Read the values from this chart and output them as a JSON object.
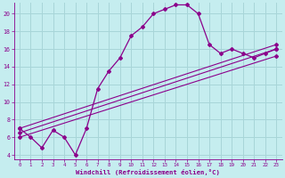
{
  "xlabel": "Windchill (Refroidissement éolien,°C)",
  "bg_color": "#c5edef",
  "grid_color": "#a8d5d8",
  "line_color": "#8b008b",
  "xlim": [
    -0.5,
    23.5
  ],
  "ylim": [
    3.5,
    21.2
  ],
  "yticks": [
    4,
    6,
    8,
    10,
    12,
    14,
    16,
    18,
    20
  ],
  "xticks": [
    0,
    1,
    2,
    3,
    4,
    5,
    6,
    7,
    8,
    9,
    10,
    11,
    12,
    13,
    14,
    15,
    16,
    17,
    18,
    19,
    20,
    21,
    22,
    23
  ],
  "curve1_x": [
    0,
    1,
    2,
    3,
    4,
    5,
    6,
    7,
    8,
    9,
    10,
    11,
    12,
    13,
    14,
    15,
    16,
    17,
    18,
    19,
    20,
    21,
    22,
    23
  ],
  "curve1_y": [
    7.0,
    6.0,
    4.8,
    6.8,
    6.0,
    4.0,
    7.0,
    11.5,
    13.5,
    15.0,
    17.5,
    18.5,
    20.0,
    20.5,
    21.0,
    21.0,
    20.0,
    16.5,
    15.5,
    16.0,
    15.5,
    15.0,
    15.5,
    16.0
  ],
  "line2_x": [
    0,
    23
  ],
  "line2_y": [
    6.5,
    16.0
  ],
  "line3_x": [
    0,
    23
  ],
  "line3_y": [
    6.0,
    15.2
  ],
  "line4_x": [
    0,
    23
  ],
  "line4_y": [
    7.0,
    16.5
  ]
}
